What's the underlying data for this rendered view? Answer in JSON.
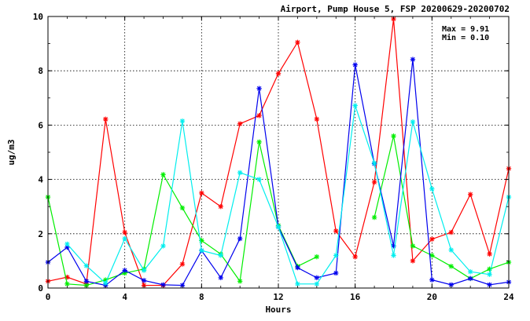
{
  "chart_data": {
    "type": "line",
    "title": "Airport, Pump House 5, FSP 20200629-20200702",
    "xlabel": "Hours",
    "ylabel": "ug/m3",
    "xlim": [
      0,
      24
    ],
    "ylim": [
      0,
      10
    ],
    "x_ticks": [
      "0",
      "4",
      "8",
      "12",
      "16",
      "20",
      "24"
    ],
    "y_ticks": [
      "0",
      "2",
      "4",
      "6",
      "8",
      "10"
    ],
    "grid": true,
    "stats": {
      "max_label": "Max = 9.91",
      "min_label": "Min = 0.10"
    },
    "x": [
      0,
      1,
      2,
      3,
      4,
      5,
      6,
      7,
      8,
      9,
      10,
      11,
      12,
      13,
      14,
      15,
      16,
      17,
      18,
      19,
      20,
      21,
      22,
      23,
      24
    ],
    "series": [
      {
        "color": "#ff0000",
        "values": [
          0.25,
          0.4,
          0.15,
          6.22,
          2.05,
          0.1,
          0.1,
          0.88,
          3.5,
          3.0,
          6.05,
          6.35,
          7.9,
          9.05,
          6.22,
          2.1,
          1.15,
          3.9,
          9.91,
          1.0,
          1.8,
          2.05,
          3.45,
          1.25,
          4.4
        ]
      },
      {
        "color": "#00ee00",
        "values": [
          3.35,
          0.15,
          0.1,
          0.3,
          0.55,
          0.7,
          4.18,
          2.95,
          1.75,
          1.25,
          0.25,
          5.38,
          2.3,
          0.8,
          1.15,
          null,
          null,
          2.6,
          5.6,
          1.55,
          1.2,
          0.8,
          0.35,
          0.7,
          0.95
        ]
      },
      {
        "color": "#0000ee",
        "values": [
          0.95,
          1.5,
          0.25,
          0.1,
          0.65,
          0.28,
          0.12,
          0.1,
          1.38,
          0.38,
          1.82,
          7.35,
          2.25,
          0.75,
          0.38,
          0.55,
          8.22,
          4.58,
          1.55,
          8.42,
          0.3,
          0.12,
          0.35,
          0.12,
          0.22
        ]
      },
      {
        "color": "#00eeee",
        "values": [
          null,
          1.62,
          0.82,
          0.18,
          1.82,
          0.65,
          1.55,
          6.15,
          1.38,
          1.2,
          4.25,
          4.0,
          2.25,
          0.15,
          0.15,
          1.2,
          6.72,
          4.6,
          1.2,
          6.12,
          3.65,
          1.4,
          0.6,
          0.5,
          3.35
        ]
      }
    ]
  }
}
